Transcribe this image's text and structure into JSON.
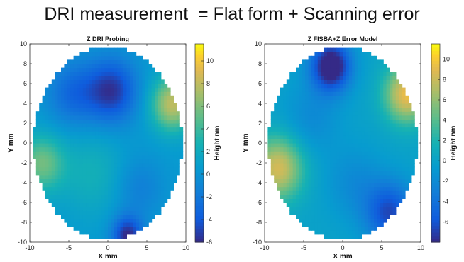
{
  "headline": "DRI measurement  = Flat form + Scanning error",
  "chart_data": [
    {
      "type": "heatmap",
      "title": "Z DRI Probing",
      "xlabel": "X mm",
      "ylabel": "Y mm",
      "colorbar_label": "Height nm",
      "xlim": [
        -10,
        10
      ],
      "ylim": [
        -10,
        10
      ],
      "xticks": [
        -10,
        -5,
        0,
        5,
        10
      ],
      "yticks": [
        -10,
        -8,
        -6,
        -4,
        -2,
        0,
        2,
        4,
        6,
        8,
        10
      ],
      "clim": [
        -6,
        11.5
      ],
      "cticks": [
        -6,
        -4,
        -2,
        0,
        2,
        4,
        6,
        8,
        10
      ],
      "colormap": "parula",
      "region": "ellipse centered at (0,0), semi-axes 9.5 x 9.7 mm",
      "blobs": [
        {
          "x": 0.5,
          "y": 5.3,
          "height": -6,
          "sigma": 2.3
        },
        {
          "x": 8.3,
          "y": 4.0,
          "height": 7.5,
          "sigma": 1.9
        },
        {
          "x": -8.5,
          "y": -2.0,
          "height": 5.0,
          "sigma": 2.0
        },
        {
          "x": 2.5,
          "y": -9.3,
          "height": -6.5,
          "sigma": 1.4
        },
        {
          "x": 4.0,
          "y": -4.5,
          "height": -2.0,
          "sigma": 2.2
        },
        {
          "x": -4.5,
          "y": 5.0,
          "height": -3.5,
          "sigma": 2.3
        },
        {
          "x": -2.0,
          "y": -3.0,
          "height": 2.0,
          "sigma": 3.0
        }
      ],
      "baseline": 0.5
    },
    {
      "type": "heatmap",
      "title": "Z FISBA+Z Error Model",
      "xlabel": "X mm",
      "ylabel": "Y mm",
      "colorbar_label": "Height nm",
      "xlim": [
        -10,
        10
      ],
      "ylim": [
        -10,
        10
      ],
      "xticks": [
        -10,
        -5,
        0,
        5,
        10
      ],
      "yticks": [
        -10,
        -8,
        -6,
        -4,
        -2,
        0,
        2,
        4,
        6,
        8,
        10
      ],
      "clim": [
        -8,
        11.5
      ],
      "cticks": [
        -6,
        -4,
        -2,
        0,
        2,
        4,
        6,
        8,
        10
      ],
      "colormap": "parula",
      "region": "ellipse centered at (0,0), semi-axes 9.5 x 9.7 mm",
      "blobs": [
        {
          "x": -1.5,
          "y": 7.8,
          "height": -10,
          "sigma": 1.8
        },
        {
          "x": 8.3,
          "y": 5.0,
          "height": 9.5,
          "sigma": 2.0
        },
        {
          "x": -8.3,
          "y": -2.5,
          "height": 8.5,
          "sigma": 2.2
        },
        {
          "x": 6.0,
          "y": -7.0,
          "height": -6.5,
          "sigma": 2.2
        },
        {
          "x": 1.5,
          "y": -4.0,
          "height": -2.0,
          "sigma": 2.5
        },
        {
          "x": -4.0,
          "y": 2.5,
          "height": -2.0,
          "sigma": 2.5
        }
      ],
      "baseline": 0.0
    }
  ]
}
